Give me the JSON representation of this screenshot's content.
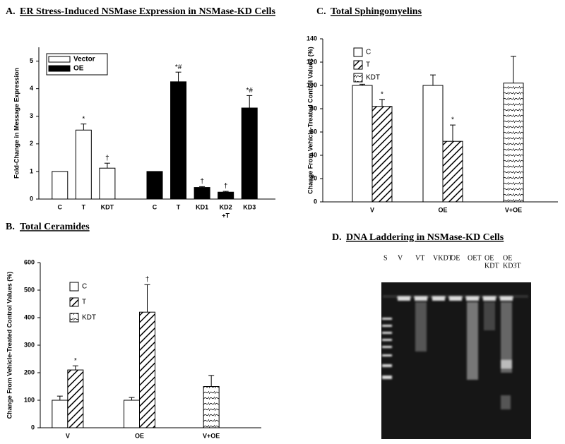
{
  "chart_data": [
    {
      "type": "bar",
      "panel": "A.",
      "title": "ER Stress-Induced NSMase Expression in NSMase-KD Cells",
      "ylabel": "Fold-Change in Message Expression",
      "categories": [
        "C",
        "T",
        "KDT",
        null,
        "C",
        "T",
        "KD1",
        "KD2",
        "KD3"
      ],
      "annotation": "+T",
      "series": [
        {
          "name": "Vector",
          "color": "#ffffff",
          "pattern": "none",
          "values": [
            1,
            2.5,
            1.12,
            null,
            null,
            null,
            null,
            null,
            null
          ],
          "errors": [
            null,
            0.22,
            0.18,
            null,
            null,
            null,
            null,
            null,
            null
          ],
          "markers": [
            null,
            "*",
            "†",
            null,
            null,
            null,
            null,
            null,
            null
          ]
        },
        {
          "name": "OE",
          "color": "#000000",
          "pattern": "none",
          "values": [
            null,
            null,
            null,
            null,
            1,
            4.25,
            0.42,
            0.25,
            3.3
          ],
          "errors": [
            null,
            null,
            null,
            null,
            null,
            0.35,
            0.03,
            0.03,
            0.45
          ],
          "markers": [
            null,
            null,
            null,
            null,
            null,
            "*#",
            "†",
            "†",
            "*#"
          ]
        }
      ],
      "ylim": [
        0,
        5.5
      ],
      "yticks": [
        0,
        1,
        2,
        3,
        4,
        5
      ]
    },
    {
      "type": "bar",
      "panel": "B.",
      "title": "Total Ceramides",
      "ylabel": "Change From Vehicle-Treated Control Values (%)",
      "categories": [
        "V",
        "OE",
        "V+OE"
      ],
      "series": [
        {
          "name": "C",
          "color": "#ffffff",
          "pattern": "none",
          "values": [
            100,
            100,
            null
          ],
          "errors": [
            15,
            10,
            null
          ],
          "markers": [
            null,
            null,
            null
          ]
        },
        {
          "name": "T",
          "color": "#ffffff",
          "pattern": "diagonal",
          "values": [
            210,
            420,
            null
          ],
          "errors": [
            15,
            100,
            null
          ],
          "markers": [
            "*",
            "†",
            null
          ]
        },
        {
          "name": "KDT",
          "color": "#ffffff",
          "pattern": "wave",
          "values": [
            null,
            null,
            150
          ],
          "errors": [
            null,
            null,
            40
          ],
          "markers": [
            null,
            null,
            null
          ]
        }
      ],
      "ylim": [
        0,
        600
      ],
      "yticks": [
        0,
        100,
        200,
        300,
        400,
        500,
        600
      ]
    },
    {
      "type": "bar",
      "panel": "C.",
      "title": "Total Sphingomyelins",
      "ylabel": "Change From Vehicle-Treated Control Values (%)",
      "categories": [
        "V",
        "OE",
        "V+OE"
      ],
      "series": [
        {
          "name": "C",
          "color": "#ffffff",
          "pattern": "none",
          "values": [
            100,
            100,
            null
          ],
          "errors": [
            1,
            9,
            null
          ],
          "markers": [
            null,
            null,
            null
          ]
        },
        {
          "name": "T",
          "color": "#ffffff",
          "pattern": "diagonal",
          "values": [
            82,
            52,
            null
          ],
          "errors": [
            6,
            14,
            null
          ],
          "markers": [
            "*",
            "*",
            null
          ]
        },
        {
          "name": "KDT",
          "color": "#ffffff",
          "pattern": "wave",
          "values": [
            null,
            null,
            102
          ],
          "errors": [
            null,
            null,
            23
          ],
          "markers": [
            null,
            null,
            null
          ]
        }
      ],
      "ylim": [
        0,
        140
      ],
      "yticks": [
        0,
        20,
        40,
        60,
        80,
        100,
        120,
        140
      ]
    },
    {
      "type": "gel",
      "panel": "D.",
      "title": "DNA Laddering in NSMase-KD Cells",
      "lanes": [
        [
          "S"
        ],
        [
          "V"
        ],
        [
          "VT"
        ],
        [
          "VKDT"
        ],
        [
          "OE"
        ],
        [
          "OET"
        ],
        [
          "OE",
          "KDT"
        ],
        [
          "OE",
          "KD3T"
        ]
      ]
    }
  ]
}
